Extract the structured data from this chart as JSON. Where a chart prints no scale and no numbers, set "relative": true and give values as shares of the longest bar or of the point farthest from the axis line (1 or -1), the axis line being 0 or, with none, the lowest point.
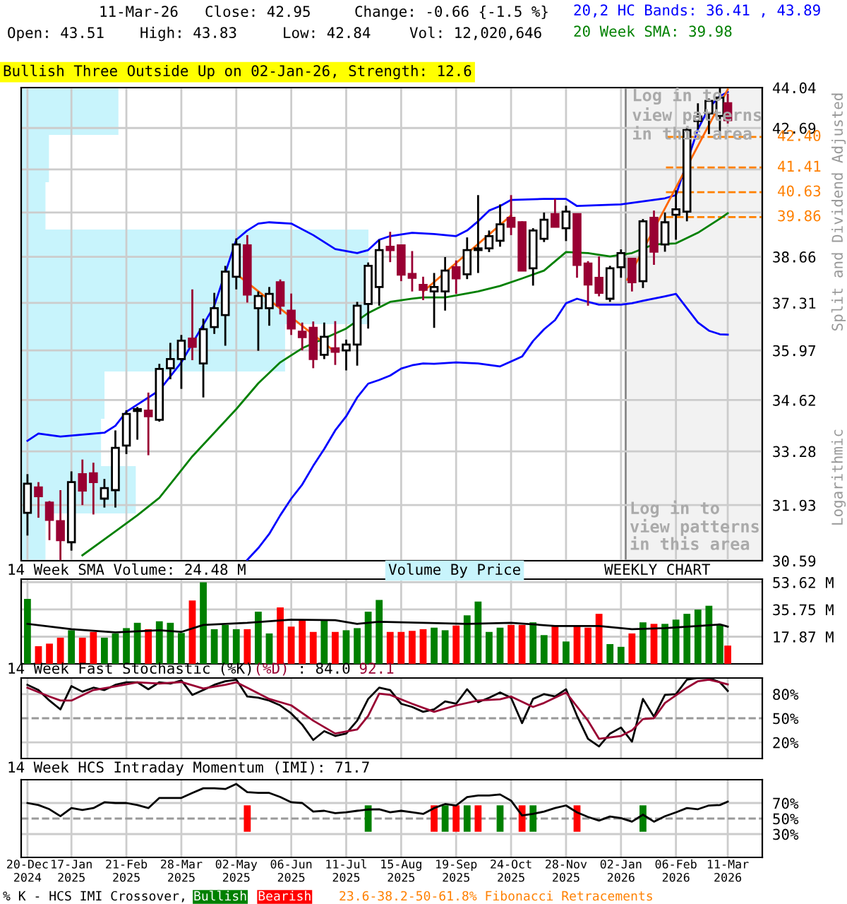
{
  "chart_data": [
    {
      "type": "candlestick",
      "ylabel": "Split and Dividend Adjusted",
      "log": true,
      "tick_labels": "y",
      "grid": true,
      "x": [
        "2024-12-20",
        "2024-12-27",
        "2025-01-03",
        "2025-01-10",
        "2025-01-17",
        "2025-01-24",
        "2025-01-31",
        "2025-02-07",
        "2025-02-14",
        "2025-02-21",
        "2025-02-28",
        "2025-03-07",
        "2025-03-14",
        "2025-03-21",
        "2025-03-28",
        "2025-04-04",
        "2025-04-11",
        "2025-04-18",
        "2025-04-25",
        "2025-05-02",
        "2025-05-09",
        "2025-05-16",
        "2025-05-23",
        "2025-05-30",
        "2025-06-06",
        "2025-06-13",
        "2025-06-20",
        "2025-06-27",
        "2025-07-04",
        "2025-07-11",
        "2025-07-18",
        "2025-07-25",
        "2025-08-01",
        "2025-08-08",
        "2025-08-15",
        "2025-08-22",
        "2025-08-29",
        "2025-09-05",
        "2025-09-12",
        "2025-09-19",
        "2025-09-26",
        "2025-10-03",
        "2025-10-10",
        "2025-10-17",
        "2025-10-24",
        "2025-10-31",
        "2025-11-07",
        "2025-11-14",
        "2025-11-21",
        "2025-11-28",
        "2025-12-05",
        "2025-12-12",
        "2025-12-19",
        "2025-12-26",
        "2026-01-02",
        "2026-01-09",
        "2026-01-16",
        "2026-01-23",
        "2026-01-30",
        "2026-02-06",
        "2026-02-13",
        "2026-02-20",
        "2026-02-27",
        "2026-03-06",
        "2026-03-11"
      ],
      "ohlc": [
        [
          31.74,
          32.7,
          31.19,
          32.46
        ],
        [
          32.37,
          32.5,
          31.62,
          32.15
        ],
        [
          31.99,
          32.03,
          31.08,
          31.57
        ],
        [
          31.54,
          32.3,
          30.6,
          31.08
        ],
        [
          31.03,
          32.77,
          30.83,
          32.5
        ],
        [
          32.7,
          33.07,
          31.93,
          32.29
        ],
        [
          32.72,
          32.99,
          31.7,
          32.5
        ],
        [
          32.09,
          32.58,
          31.87,
          32.35
        ],
        [
          32.3,
          33.82,
          31.87,
          33.37
        ],
        [
          33.43,
          34.35,
          33.21,
          34.25
        ],
        [
          34.33,
          34.44,
          33.58,
          34.38
        ],
        [
          34.34,
          34.82,
          33.18,
          34.19
        ],
        [
          34.1,
          35.6,
          34.05,
          35.46
        ],
        [
          35.48,
          36.18,
          35.18,
          35.73
        ],
        [
          35.73,
          36.4,
          34.92,
          36.24
        ],
        [
          36.3,
          37.7,
          35.7,
          36.07
        ],
        [
          35.61,
          36.86,
          34.69,
          36.56
        ],
        [
          36.62,
          37.6,
          36.43,
          37.16
        ],
        [
          36.96,
          38.39,
          36.1,
          38.22
        ],
        [
          38.07,
          39.21,
          37.7,
          39.03
        ],
        [
          39.0,
          39.31,
          37.32,
          37.55
        ],
        [
          37.16,
          37.64,
          35.96,
          37.51
        ],
        [
          37.16,
          37.77,
          36.66,
          37.57
        ],
        [
          37.91,
          37.99,
          36.98,
          37.23
        ],
        [
          37.09,
          37.58,
          36.4,
          36.58
        ],
        [
          36.49,
          36.75,
          35.97,
          36.34
        ],
        [
          36.6,
          36.78,
          35.48,
          35.73
        ],
        [
          35.85,
          36.75,
          35.73,
          36.35
        ],
        [
          36.03,
          36.79,
          35.57,
          35.93
        ],
        [
          35.97,
          36.27,
          35.42,
          36.13
        ],
        [
          36.13,
          37.34,
          35.55,
          37.23
        ],
        [
          37.28,
          38.49,
          36.58,
          38.39
        ],
        [
          37.77,
          39.17,
          37.23,
          38.86
        ],
        [
          38.96,
          39.41,
          38.5,
          38.86
        ],
        [
          39.0,
          39.03,
          37.94,
          38.13
        ],
        [
          38.15,
          38.83,
          37.64,
          38.04
        ],
        [
          37.83,
          38.07,
          37.39,
          37.69
        ],
        [
          37.64,
          38.18,
          36.6,
          37.77
        ],
        [
          37.64,
          38.65,
          37.09,
          38.25
        ],
        [
          38.35,
          38.55,
          37.57,
          38.02
        ],
        [
          38.14,
          39.24,
          38.0,
          38.86
        ],
        [
          38.86,
          40.54,
          38.18,
          38.91
        ],
        [
          38.91,
          39.45,
          38.8,
          39.28
        ],
        [
          39.14,
          40.25,
          38.96,
          39.64
        ],
        [
          39.84,
          40.54,
          39.31,
          39.56
        ],
        [
          39.7,
          39.73,
          38.25,
          38.25
        ],
        [
          38.32,
          39.52,
          37.81,
          39.45
        ],
        [
          39.2,
          40.0,
          39.1,
          39.78
        ],
        [
          39.95,
          40.42,
          39.56,
          39.56
        ],
        [
          39.52,
          40.21,
          39.13,
          40.03
        ],
        [
          39.95,
          39.95,
          38.04,
          38.42
        ],
        [
          38.46,
          38.53,
          37.23,
          37.84
        ],
        [
          38.04,
          38.67,
          37.5,
          37.6
        ],
        [
          37.43,
          38.39,
          37.34,
          38.32
        ],
        [
          38.35,
          38.88,
          38.04,
          38.77
        ],
        [
          38.6,
          38.63,
          37.64,
          37.91
        ],
        [
          37.94,
          39.8,
          37.74,
          39.73
        ],
        [
          39.84,
          40.06,
          38.42,
          38.81
        ],
        [
          39.03,
          40.0,
          38.81,
          39.7
        ],
        [
          39.93,
          40.69,
          39.17,
          40.1
        ],
        [
          40.03,
          42.7,
          39.73,
          42.62
        ],
        [
          42.92,
          43.51,
          42.65,
          43.07
        ],
        [
          43.17,
          43.67,
          42.49,
          43.59
        ],
        [
          43.09,
          44.02,
          42.57,
          43.7
        ],
        [
          43.51,
          43.83,
          42.84,
          42.95
        ]
      ],
      "colors": [
        "#ffffff",
        "#990033",
        "#990033",
        "#990033",
        "#ffffff",
        "#990033",
        "#990033",
        "#ffffff",
        "#ffffff",
        "#ffffff",
        "#ffffff",
        "#990033",
        "#ffffff",
        "#ffffff",
        "#ffffff",
        "#990033",
        "#ffffff",
        "#ffffff",
        "#ffffff",
        "#ffffff",
        "#990033",
        "#ffffff",
        "#ffffff",
        "#990033",
        "#990033",
        "#990033",
        "#990033",
        "#ffffff",
        "#990033",
        "#ffffff",
        "#ffffff",
        "#ffffff",
        "#ffffff",
        "#990033",
        "#990033",
        "#990033",
        "#990033",
        "#ffffff",
        "#ffffff",
        "#990033",
        "#ffffff",
        "#ffffff",
        "#ffffff",
        "#ffffff",
        "#990033",
        "#990033",
        "#ffffff",
        "#ffffff",
        "#990033",
        "#ffffff",
        "#990033",
        "#990033",
        "#990033",
        "#ffffff",
        "#ffffff",
        "#990033",
        "#ffffff",
        "#990033",
        "#ffffff",
        "#ffffff",
        "#ffffff",
        "#ffffff",
        "#ffffff",
        "#ffffff",
        "#990033"
      ],
      "series": [
        {
          "type": "line",
          "color": "#0000ff",
          "x": [
            "2024-12-20",
            "2024-12-27",
            "2025-01-10",
            "2025-02-07",
            "2025-02-14",
            "2025-02-21",
            "2025-02-28",
            "2025-03-14",
            "2025-03-28",
            "2025-04-18",
            "2025-05-02",
            "2025-05-09",
            "2025-05-16",
            "2025-05-23",
            "2025-06-06",
            "2025-06-20",
            "2025-07-04",
            "2025-07-18",
            "2025-07-25",
            "2025-08-01",
            "2025-08-08",
            "2025-08-22",
            "2025-09-05",
            "2025-09-19",
            "2025-09-26",
            "2025-10-03",
            "2025-10-10",
            "2025-10-17",
            "2025-10-24",
            "2025-11-14",
            "2025-11-28",
            "2025-12-05",
            "2026-01-02",
            "2026-01-30",
            "2026-02-06",
            "2026-02-20",
            "2026-02-27",
            "2026-03-06",
            "2026-03-11"
          ],
          "values": [
            33.55,
            33.74,
            33.66,
            33.76,
            33.94,
            34.31,
            34.5,
            34.88,
            35.64,
            37.23,
            39.17,
            39.45,
            39.66,
            39.7,
            39.66,
            39.31,
            38.89,
            38.77,
            38.86,
            39.17,
            39.28,
            39.38,
            39.34,
            39.28,
            39.45,
            39.73,
            40.06,
            40.2,
            40.39,
            40.42,
            40.42,
            40.2,
            40.25,
            40.44,
            40.54,
            42.65,
            43.36,
            43.75,
            43.89
          ]
        },
        {
          "type": "line",
          "color": "#0000ff",
          "x": [
            "2025-05-09",
            "2025-05-16",
            "2025-05-23",
            "2025-05-30",
            "2025-06-06",
            "2025-06-13",
            "2025-06-20",
            "2025-06-27",
            "2025-07-04",
            "2025-07-11",
            "2025-07-18",
            "2025-07-25",
            "2025-08-01",
            "2025-08-08",
            "2025-08-15",
            "2025-08-22",
            "2025-08-29",
            "2025-09-05",
            "2025-09-19",
            "2025-10-03",
            "2025-10-17",
            "2025-10-31",
            "2025-11-07",
            "2025-11-14",
            "2025-11-21",
            "2025-11-28",
            "2025-12-05",
            "2025-12-12",
            "2025-12-19",
            "2026-01-02",
            "2026-01-09",
            "2026-01-16",
            "2026-01-30",
            "2026-02-06",
            "2026-02-13",
            "2026-02-20",
            "2026-02-27",
            "2026-03-06",
            "2026-03-11"
          ],
          "values": [
            30.61,
            30.89,
            31.23,
            31.68,
            32.09,
            32.44,
            32.91,
            33.34,
            33.82,
            34.19,
            34.69,
            35.06,
            35.16,
            35.28,
            35.47,
            35.56,
            35.61,
            35.6,
            35.64,
            35.61,
            35.53,
            35.8,
            36.23,
            36.56,
            36.82,
            37.3,
            37.43,
            37.34,
            37.26,
            37.26,
            37.3,
            37.37,
            37.5,
            37.57,
            37.16,
            36.75,
            36.52,
            36.42,
            36.41
          ]
        },
        {
          "type": "line",
          "color": "#008000",
          "x": [
            "2025-01-24",
            "2025-02-14",
            "2025-02-28",
            "2025-03-14",
            "2025-04-04",
            "2025-04-18",
            "2025-05-02",
            "2025-05-16",
            "2025-05-30",
            "2025-06-13",
            "2025-06-27",
            "2025-07-11",
            "2025-07-25",
            "2025-08-08",
            "2025-08-22",
            "2025-08-29",
            "2025-09-12",
            "2025-10-03",
            "2025-10-17",
            "2025-10-31",
            "2025-11-14",
            "2025-11-28",
            "2025-12-12",
            "2025-12-26",
            "2026-01-09",
            "2026-01-23",
            "2026-02-06",
            "2026-02-20",
            "2026-03-06",
            "2026-03-11"
          ],
          "values": [
            30.72,
            31.29,
            31.68,
            32.11,
            33.15,
            33.76,
            34.38,
            35.07,
            35.64,
            36.03,
            36.3,
            36.58,
            37.02,
            37.34,
            37.43,
            37.47,
            37.47,
            37.64,
            37.8,
            38.02,
            38.25,
            38.8,
            38.77,
            38.67,
            38.77,
            39.03,
            39.06,
            39.38,
            39.81,
            39.98
          ]
        },
        {
          "type": "line",
          "color": "#ff6600",
          "x": [
            "2025-05-02",
            "2025-07-04"
          ],
          "values": [
            38.15,
            35.93
          ]
        },
        {
          "type": "line",
          "color": "#ff6600",
          "x": [
            "2025-08-29",
            "2025-10-24"
          ],
          "values": [
            37.64,
            39.91
          ]
        },
        {
          "type": "line",
          "color": "#ff6600",
          "x": [
            "2026-01-06",
            "2026-03-11"
          ],
          "values": [
            37.98,
            43.98
          ]
        }
      ],
      "xlim": [
        "2024-12-16",
        "2026-04-02"
      ],
      "ylim": [
        30.59,
        44.04
      ],
      "xticks": [
        "2024-12-20",
        "2025-01-17",
        "2025-02-21",
        "2025-03-28",
        "2025-05-02",
        "2025-06-06",
        "2025-07-11",
        "2025-08-15",
        "2025-09-19",
        "2025-10-24",
        "2025-11-28",
        "2026-01-02",
        "2026-02-06",
        "2026-03-11"
      ],
      "yticks": [
        30.59,
        31.93,
        33.28,
        34.62,
        35.97,
        37.31,
        38.66,
        {
          "value": 40.0,
          "label": null
        },
        {
          "value": 41.35,
          "label": null
        },
        42.69,
        44.04
      ],
      "ref_lines": [
        {
          "axis": "y",
          "value": 42.4,
          "label": "42.40",
          "color": "#ff8000",
          "line_style": "dashed"
        },
        {
          "axis": "y",
          "value": 41.41,
          "label": "41.41",
          "color": "#ff8000",
          "line_style": "dashed"
        },
        {
          "axis": "y",
          "value": 40.63,
          "label": "40.63",
          "color": "#ff8000",
          "line_style": "dashed"
        },
        {
          "axis": "y",
          "value": 39.86,
          "label": "39.86",
          "color": "#ff8000",
          "line_style": "dashed"
        }
      ],
      "bands": [
        {
          "axis": "x",
          "from": "2026-01-05",
          "to": "2026-04-02",
          "color": "#f2f2f2",
          "label": "Log in to\nview patterns\nin this area"
        }
      ],
      "annotations": [
        "11-Mar-26",
        "Close: 42.95",
        "Change: -0.66 {-1.5 %}",
        "Open: 43.51",
        "High: 43.83",
        "Low: 42.84",
        "Vol: 12,020,646",
        "20,2 HC Bands: 36.41 , 43.89",
        "20 Week SMA: 39.98",
        "Bullish Three Outside Up on 02-Jan-26, Strength: 12.6",
        "Log in to\nview patterns\nin this area",
        "Logarithmic",
        "23.6-38.2-50-61.8% Fibonacci Retracements"
      ]
    },
    {
      "type": "bar",
      "orientation": "horizontal",
      "relative": true,
      "tick_labels": false,
      "color": "#c8f4fc",
      "categories": [
        null,
        null,
        null,
        null,
        null,
        null,
        null,
        null,
        null,
        null
      ],
      "values": [
        0.28,
        0.08,
        0.07,
        1.0,
        1.0,
        0.76,
        0.24,
        0.23,
        0.33,
        0.07
      ]
    },
    {
      "type": "bar",
      "title": "14 Week SMA Volume: 24.48 M",
      "tick_labels": "y",
      "grid": true,
      "x": [
        "2024-12-20",
        "2024-12-27",
        "2025-01-03",
        "2025-01-10",
        "2025-01-17",
        "2025-01-24",
        "2025-01-31",
        "2025-02-07",
        "2025-02-14",
        "2025-02-21",
        "2025-02-28",
        "2025-03-07",
        "2025-03-14",
        "2025-03-21",
        "2025-03-28",
        "2025-04-04",
        "2025-04-11",
        "2025-04-18",
        "2025-04-25",
        "2025-05-02",
        "2025-05-09",
        "2025-05-16",
        "2025-05-23",
        "2025-05-30",
        "2025-06-06",
        "2025-06-13",
        "2025-06-20",
        "2025-06-27",
        "2025-07-04",
        "2025-07-11",
        "2025-07-18",
        "2025-07-25",
        "2025-08-01",
        "2025-08-08",
        "2025-08-15",
        "2025-08-22",
        "2025-08-29",
        "2025-09-05",
        "2025-09-12",
        "2025-09-19",
        "2025-09-26",
        "2025-10-03",
        "2025-10-10",
        "2025-10-17",
        "2025-10-24",
        "2025-10-31",
        "2025-11-07",
        "2025-11-14",
        "2025-11-21",
        "2025-11-28",
        "2025-12-05",
        "2025-12-12",
        "2025-12-19",
        "2025-12-26",
        "2026-01-02",
        "2026-01-09",
        "2026-01-16",
        "2026-01-23",
        "2026-01-30",
        "2026-02-06",
        "2026-02-13",
        "2026-02-20",
        "2026-02-27",
        "2026-03-06",
        "2026-03-11"
      ],
      "series": [
        {
          "values": [
            42.7,
            11.6,
            13.3,
            17.2,
            22.1,
            17.2,
            21.0,
            17.2,
            20.0,
            23.5,
            27.0,
            22.8,
            28.0,
            27.0,
            20.3,
            41.7,
            53.6,
            22.8,
            25.6,
            22.8,
            22.8,
            34.3,
            20.0,
            37.1,
            24.5,
            28.4,
            21.0,
            28.4,
            21.0,
            22.1,
            23.5,
            34.3,
            42.0,
            21.0,
            21.0,
            21.7,
            22.8,
            23.8,
            22.1,
            25.2,
            31.9,
            41.0,
            21.0,
            23.8,
            25.6,
            25.6,
            27.3,
            18.9,
            24.9,
            14.7,
            24.9,
            23.8,
            32.9,
            13.0,
            11.2,
            20.0,
            27.3,
            26.3,
            26.3,
            29.1,
            32.9,
            35.7,
            38.2,
            25.6,
            12.02
          ],
          "colors": [
            "#008000",
            "#ff0000",
            "#ff0000",
            "#ff0000",
            "#008000",
            "#ff0000",
            "#ff0000",
            "#008000",
            "#008000",
            "#008000",
            "#008000",
            "#ff0000",
            "#008000",
            "#008000",
            "#008000",
            "#ff0000",
            "#008000",
            "#008000",
            "#008000",
            "#008000",
            "#ff0000",
            "#008000",
            "#008000",
            "#ff0000",
            "#ff0000",
            "#ff0000",
            "#ff0000",
            "#008000",
            "#ff0000",
            "#008000",
            "#008000",
            "#008000",
            "#008000",
            "#ff0000",
            "#ff0000",
            "#ff0000",
            "#ff0000",
            "#008000",
            "#008000",
            "#ff0000",
            "#008000",
            "#008000",
            "#008000",
            "#008000",
            "#ff0000",
            "#ff0000",
            "#008000",
            "#008000",
            "#ff0000",
            "#008000",
            "#ff0000",
            "#ff0000",
            "#ff0000",
            "#008000",
            "#008000",
            "#ff0000",
            "#008000",
            "#ff0000",
            "#008000",
            "#008000",
            "#008000",
            "#008000",
            "#008000",
            "#008000",
            "#ff0000"
          ]
        },
        {
          "type": "line",
          "color": "#000000",
          "x": [
            "2024-12-20",
            "2025-01-17",
            "2025-02-14",
            "2025-03-14",
            "2025-03-28",
            "2025-04-11",
            "2025-05-09",
            "2025-06-06",
            "2025-07-04",
            "2025-07-18",
            "2025-08-01",
            "2025-08-29",
            "2025-09-26",
            "2025-10-24",
            "2025-11-21",
            "2025-12-19",
            "2026-01-09",
            "2026-01-30",
            "2026-02-20",
            "2026-03-06",
            "2026-03-11"
          ],
          "values": [
            26.3,
            22.8,
            20.7,
            22.1,
            21.0,
            25.6,
            27.0,
            29.1,
            28.7,
            26.3,
            27.7,
            27.0,
            26.3,
            27.0,
            24.9,
            24.9,
            22.8,
            23.5,
            24.9,
            25.9,
            24.48
          ]
        }
      ],
      "xlim": [
        "2024-12-16",
        "2026-04-02"
      ],
      "ylim": [
        0,
        55.7
      ],
      "xticks": [
        "2024-12-20",
        "2025-01-17",
        "2025-02-21",
        "2025-03-28",
        "2025-05-02",
        "2025-06-06",
        "2025-07-11",
        "2025-08-15",
        "2025-09-19",
        "2025-10-24",
        "2025-11-28",
        "2026-01-02",
        "2026-02-06",
        "2026-03-11"
      ],
      "yticks": [
        {
          "value": 17.87,
          "label": "17.87 M"
        },
        {
          "value": 35.75,
          "label": "35.75 M"
        },
        {
          "value": 53.62,
          "label": "53.62 M"
        }
      ],
      "annotations": [
        "WEEKLY CHART",
        "Volume By Price"
      ]
    },
    {
      "type": "line",
      "title": "14 Week Fast Stochastic",
      "tick_labels": "y",
      "grid": true,
      "x": [
        "2024-12-20",
        "2024-12-27",
        "2025-01-03",
        "2025-01-10",
        "2025-01-17",
        "2025-01-24",
        "2025-01-31",
        "2025-02-07",
        "2025-02-14",
        "2025-02-21",
        "2025-02-28",
        "2025-03-07",
        "2025-03-14",
        "2025-03-21",
        "2025-03-28",
        "2025-04-04",
        "2025-04-11",
        "2025-04-18",
        "2025-04-25",
        "2025-05-02",
        "2025-05-09",
        "2025-05-16",
        "2025-05-23",
        "2025-05-30",
        "2025-06-06",
        "2025-06-13",
        "2025-06-20",
        "2025-06-27",
        "2025-07-04",
        "2025-07-11",
        "2025-07-18",
        "2025-07-25",
        "2025-08-01",
        "2025-08-08",
        "2025-08-15",
        "2025-08-22",
        "2025-08-29",
        "2025-09-05",
        "2025-09-12",
        "2025-09-19",
        "2025-09-26",
        "2025-10-03",
        "2025-10-10",
        "2025-10-17",
        "2025-10-24",
        "2025-10-31",
        "2025-11-07",
        "2025-11-14",
        "2025-11-21",
        "2025-11-28",
        "2025-12-05",
        "2025-12-12",
        "2025-12-19",
        "2025-12-26",
        "2026-01-02",
        "2026-01-09",
        "2026-01-16",
        "2026-01-23",
        "2026-01-30",
        "2026-02-06",
        "2026-02-13",
        "2026-02-20",
        "2026-02-27",
        "2026-03-06",
        "2026-03-11"
      ],
      "series": [
        {
          "name": "(%K)",
          "color": "#000000",
          "values": [
            91.5,
            85,
            72,
            61,
            90,
            83,
            88,
            85,
            91.5,
            94.7,
            94.7,
            86,
            94.7,
            93,
            97,
            79,
            85,
            91.5,
            96,
            98,
            77,
            75.5,
            72,
            66,
            56,
            42,
            23,
            34,
            28,
            31,
            47,
            74,
            88,
            85,
            68,
            64,
            58,
            61,
            71,
            68,
            86,
            70,
            75.5,
            82,
            75.5,
            44,
            74,
            80,
            77,
            86,
            53,
            24.5,
            15,
            31,
            38.5,
            21,
            74,
            52,
            79,
            80,
            98,
            100,
            100,
            94.7,
            84.0
          ]
        },
        {
          "name": "(%D)",
          "color": "#990033",
          "x": [
            "2024-12-20",
            "2025-01-03",
            "2025-01-10",
            "2025-01-17",
            "2025-01-31",
            "2025-02-14",
            "2025-02-28",
            "2025-03-14",
            "2025-03-28",
            "2025-04-11",
            "2025-04-25",
            "2025-05-02",
            "2025-05-09",
            "2025-05-23",
            "2025-06-06",
            "2025-06-20",
            "2025-07-04",
            "2025-07-18",
            "2025-07-25",
            "2025-08-01",
            "2025-08-08",
            "2025-08-22",
            "2025-09-05",
            "2025-09-19",
            "2025-10-03",
            "2025-10-17",
            "2025-10-24",
            "2025-11-07",
            "2025-11-14",
            "2025-11-28",
            "2025-12-12",
            "2025-12-19",
            "2026-01-02",
            "2026-01-09",
            "2026-01-16",
            "2026-01-23",
            "2026-01-30",
            "2026-02-13",
            "2026-02-20",
            "2026-02-27",
            "2026-03-06",
            "2026-03-11"
          ],
          "values": [
            88,
            77,
            72,
            72,
            85,
            89.6,
            94.7,
            93,
            95,
            87,
            91.5,
            94.7,
            88,
            74,
            66,
            47,
            31,
            36,
            53,
            80.6,
            79,
            68,
            58,
            66,
            72,
            73.6,
            77,
            64,
            69,
            82,
            47,
            24.5,
            28,
            35,
            49,
            50,
            69,
            88,
            96,
            98,
            94.7,
            92.1
          ]
        }
      ],
      "xlim": [
        "2024-12-16",
        "2026-04-02"
      ],
      "ylim": [
        0,
        100
      ],
      "xticks": [
        "2024-12-20",
        "2025-01-17",
        "2025-02-21",
        "2025-03-28",
        "2025-05-02",
        "2025-06-06",
        "2025-07-11",
        "2025-08-15",
        "2025-09-19",
        "2025-10-24",
        "2025-11-28",
        "2026-01-02",
        "2026-02-06",
        "2026-03-11"
      ],
      "yticks": [
        {
          "value": 20,
          "label": "20%"
        },
        {
          "value": 50,
          "label": "50%"
        },
        {
          "value": 80,
          "label": "80%"
        }
      ],
      "ref_lines": [
        {
          "axis": "y",
          "value": 50,
          "color": "#999999",
          "line_style": "dashed"
        }
      ],
      "annotations": [
        ": 84.0",
        "92.1"
      ]
    },
    {
      "type": "line",
      "title": "14 Week HCS Intraday Momentum (IMI): 71.7",
      "grid": true,
      "legend": "bottom",
      "legend_title": "% K - HCS IMI Crossover,",
      "x": [
        "2024-12-20",
        "2024-12-27",
        "2025-01-03",
        "2025-01-10",
        "2025-01-17",
        "2025-01-24",
        "2025-01-31",
        "2025-02-07",
        "2025-02-14",
        "2025-02-21",
        "2025-02-28",
        "2025-03-07",
        "2025-03-14",
        "2025-03-21",
        "2025-03-28",
        "2025-04-04",
        "2025-04-11",
        "2025-04-18",
        "2025-04-25",
        "2025-05-02",
        "2025-05-09",
        "2025-05-16",
        "2025-05-23",
        "2025-05-30",
        "2025-06-06",
        "2025-06-13",
        "2025-06-20",
        "2025-06-27",
        "2025-07-04",
        "2025-07-11",
        "2025-07-18",
        "2025-07-25",
        "2025-08-01",
        "2025-08-08",
        "2025-08-15",
        "2025-08-22",
        "2025-08-29",
        "2025-09-05",
        "2025-09-12",
        "2025-09-19",
        "2025-09-26",
        "2025-10-03",
        "2025-10-10",
        "2025-10-17",
        "2025-10-24",
        "2025-10-31",
        "2025-11-07",
        "2025-11-14",
        "2025-11-21",
        "2025-11-28",
        "2025-12-05",
        "2025-12-12",
        "2025-12-19",
        "2025-12-26",
        "2026-01-02",
        "2026-01-09",
        "2026-01-16",
        "2026-01-23",
        "2026-01-30",
        "2026-02-06",
        "2026-02-13",
        "2026-02-20",
        "2026-02-27",
        "2026-03-06",
        "2026-03-11"
      ],
      "series": [
        {
          "color": "#000000",
          "values": [
            70,
            67.4,
            62,
            53,
            63.5,
            61,
            63.5,
            71,
            70,
            70,
            67.4,
            63.5,
            76.5,
            76.5,
            76.5,
            83,
            89,
            89,
            88,
            94.5,
            84,
            83,
            83,
            77.7,
            71,
            70,
            59,
            60,
            57,
            58,
            60,
            61.6,
            62,
            58,
            60,
            58,
            56,
            63.5,
            68.7,
            66.8,
            77.7,
            79.7,
            79.7,
            81,
            73,
            54,
            56,
            59,
            63.5,
            66.8,
            58,
            52,
            47.4,
            52.6,
            50.6,
            46,
            55,
            46,
            53,
            58,
            63.5,
            62,
            66.8,
            67.4,
            71.7
          ]
        },
        {
          "type": "bar",
          "name": "Bullish",
          "color": "#008000",
          "x": [
            "2025-07-25",
            "2025-09-12",
            "2025-09-26",
            "2025-10-17",
            "2025-11-07",
            "2026-01-16"
          ],
          "values": [
            34,
            34,
            34,
            34,
            34,
            34
          ],
          "base": [
            33,
            33,
            33,
            33,
            33,
            33
          ]
        },
        {
          "type": "bar",
          "name": "Bearish",
          "color": "#ff0000",
          "x": [
            "2025-05-09",
            "2025-09-05",
            "2025-09-19",
            "2025-10-03",
            "2025-10-31",
            "2025-12-05"
          ],
          "values": [
            34,
            34,
            34,
            34,
            34,
            34
          ],
          "base": [
            33,
            33,
            33,
            33,
            33,
            33
          ]
        }
      ],
      "xlim": [
        "2024-12-16",
        "2026-04-02"
      ],
      "ylim": [
        0,
        100
      ],
      "xticks": [
        {
          "value": "2024-12-20",
          "label": "20-Dec\n2024"
        },
        {
          "value": "2025-01-17",
          "label": "17-Jan\n2025"
        },
        {
          "value": "2025-02-21",
          "label": "21-Feb\n2025"
        },
        {
          "value": "2025-03-28",
          "label": "28-Mar\n2025"
        },
        {
          "value": "2025-05-02",
          "label": "02-May\n2025"
        },
        {
          "value": "2025-06-06",
          "label": "06-Jun\n2025"
        },
        {
          "value": "2025-07-11",
          "label": "11-Jul\n2025"
        },
        {
          "value": "2025-08-15",
          "label": "15-Aug\n2025"
        },
        {
          "value": "2025-09-19",
          "label": "19-Sep\n2025"
        },
        {
          "value": "2025-10-24",
          "label": "24-Oct\n2025"
        },
        {
          "value": "2025-11-28",
          "label": "28-Nov\n2025"
        },
        {
          "value": "2026-01-02",
          "label": "02-Jan\n2026"
        },
        {
          "value": "2026-02-06",
          "label": "06-Feb\n2026"
        },
        {
          "value": "2026-03-11",
          "label": "11-Mar\n2026"
        }
      ],
      "yticks": [
        {
          "value": 30,
          "label": "30%"
        },
        {
          "value": 50,
          "label": "50%"
        },
        {
          "value": 70,
          "label": "70%"
        }
      ],
      "ref_lines": [
        {
          "axis": "y",
          "value": 50,
          "color": "#999999",
          "line_style": "dashed"
        }
      ]
    }
  ]
}
